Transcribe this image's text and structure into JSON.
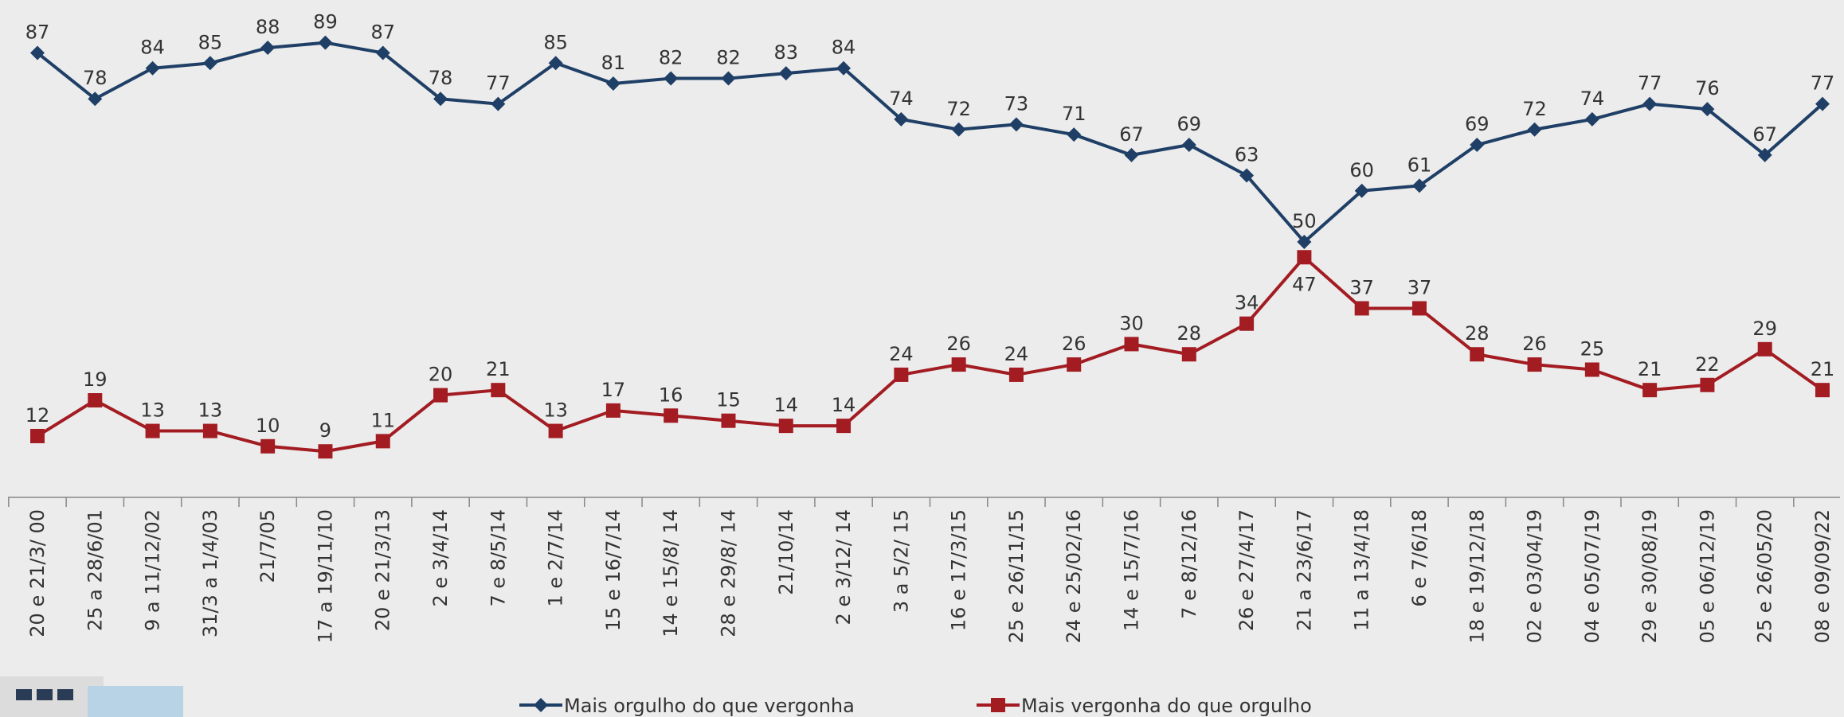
{
  "chart_data": {
    "type": "line",
    "categories": [
      "20 e 21/3/ 00",
      "25 a 28/6/01",
      "9 a 11/12/02",
      "31/3 a 1/4/03",
      "21/7/05",
      "17 a 19/11/10",
      "20 e 21/3/13",
      "2 e 3/4/14",
      "7 e 8/5/14",
      "1 e 2/7/14",
      "15 e 16/7/14",
      "14 e 15/8/ 14",
      "28 e 29/8/ 14",
      "21/10/14",
      "2 e 3/12/ 14",
      "3 a 5/2/ 15",
      "16 e 17/3/15",
      "25 e 26/11/15",
      "24 e 25/02/16",
      "14 e 15/7/16",
      "7 e 8/12/16",
      "26 e 27/4/17",
      "21 a 23/6/17",
      "11 a 13/4/18",
      "6 e 7/6/18",
      "18 e 19/12/18",
      "02 e 03/04/19",
      "04 e 05/07/19",
      "29 e 30/08/19",
      "05 e 06/12/19",
      "25 e 26/05/20",
      "08 e 09/09/22"
    ],
    "series": [
      {
        "name": "Mais orgulho do que vergonha",
        "color": "#1f3f66",
        "marker": "diamond",
        "values": [
          87,
          78,
          84,
          85,
          88,
          89,
          87,
          78,
          77,
          85,
          81,
          82,
          82,
          83,
          84,
          74,
          72,
          73,
          71,
          67,
          69,
          63,
          50,
          60,
          61,
          69,
          72,
          74,
          77,
          76,
          67,
          77
        ]
      },
      {
        "name": "Mais vergonha do que orgulho",
        "color": "#a21c22",
        "marker": "square",
        "values": [
          12,
          19,
          13,
          13,
          10,
          9,
          11,
          20,
          21,
          13,
          17,
          16,
          15,
          14,
          14,
          24,
          26,
          24,
          26,
          30,
          28,
          34,
          47,
          37,
          37,
          28,
          26,
          25,
          21,
          22,
          29,
          21
        ]
      }
    ]
  }
}
